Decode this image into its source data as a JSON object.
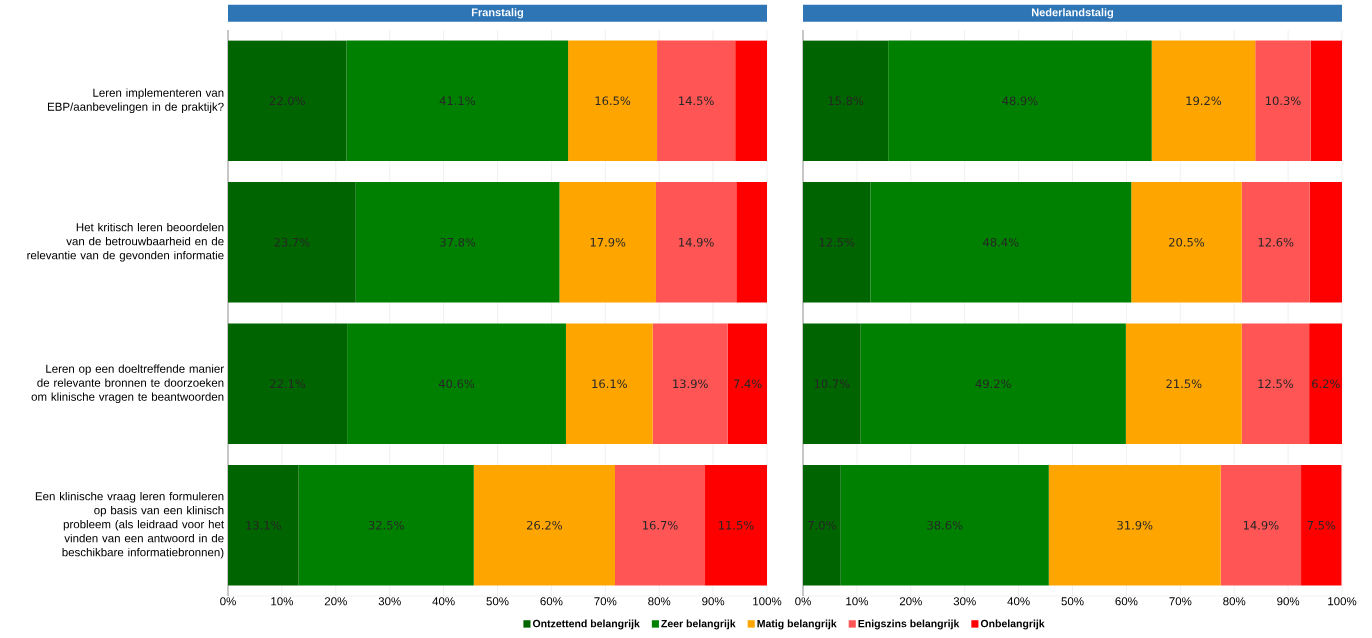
{
  "chart_data": [
    {
      "type": "bar",
      "orientation": "horizontal",
      "stacked": true,
      "title": "Franstalig",
      "categories": [
        "Leren implementeren van EBP/aanbevelingen in de praktijk?",
        "Het kritisch leren beoordelen van de betrouwbaarheid en de relevantie van de gevonden informatie",
        "Leren op een doeltreffende manier de relevante bronnen te doorzoeken om klinische vragen te beantwoorden",
        "Een klinische vraag leren formuleren op basis van een klinisch probleem (als leidraad voor het vinden van een antwoord in de beschikbare informatiebronnen)"
      ],
      "xlim": [
        0,
        100
      ],
      "xticks": [
        {
          "value": 0,
          "label": "0%"
        },
        {
          "value": 10,
          "label": "10%"
        },
        {
          "value": 20,
          "label": "20%"
        },
        {
          "value": 30,
          "label": "30%"
        },
        {
          "value": 40,
          "label": "40%"
        },
        {
          "value": 50,
          "label": "50%"
        },
        {
          "value": 60,
          "label": "60%"
        },
        {
          "value": 70,
          "label": "70%"
        },
        {
          "value": 80,
          "label": "80%"
        },
        {
          "value": 90,
          "label": "90%"
        },
        {
          "value": 100,
          "label": "100%"
        }
      ],
      "grid": "x",
      "legend": "bottom",
      "series": [
        {
          "name": "Ontzettend belangrijk",
          "color": "#006400",
          "values": [
            22.0,
            23.7,
            22.1,
            13.1
          ],
          "value_labels": [
            "22.0%",
            "23.7%",
            "22.1%",
            "13.1%"
          ]
        },
        {
          "name": "Zeer belangrijk",
          "color": "#008000",
          "values": [
            41.1,
            37.8,
            40.6,
            32.5
          ],
          "value_labels": [
            "41.1%",
            "37.8%",
            "40.6%",
            "32.5%"
          ]
        },
        {
          "name": "Matig belangrijk",
          "color": "#ffa500",
          "values": [
            16.5,
            17.9,
            16.1,
            26.2
          ],
          "value_labels": [
            "16.5%",
            "17.9%",
            "16.1%",
            "26.2%"
          ]
        },
        {
          "name": "Enigszins belangrijk",
          "color": "#ff5555",
          "values": [
            14.5,
            14.9,
            13.9,
            16.7
          ],
          "value_labels": [
            "14.5%",
            "14.9%",
            "13.9%",
            "16.7%"
          ]
        },
        {
          "name": "Onbelangrijk",
          "color": "#ff0000",
          "values": [
            5.9,
            5.7,
            7.4,
            11.5
          ],
          "value_labels": [
            null,
            null,
            "7.4%",
            "11.5%"
          ]
        }
      ]
    },
    {
      "type": "bar",
      "orientation": "horizontal",
      "stacked": true,
      "title": "Nederlandstalig",
      "categories": [
        null,
        null,
        null,
        null
      ],
      "xlim": [
        0,
        100
      ],
      "xticks": [
        {
          "value": 0,
          "label": "0%"
        },
        {
          "value": 10,
          "label": "10%"
        },
        {
          "value": 20,
          "label": "20%"
        },
        {
          "value": 30,
          "label": "30%"
        },
        {
          "value": 40,
          "label": "40%"
        },
        {
          "value": 50,
          "label": "50%"
        },
        {
          "value": 60,
          "label": "60%"
        },
        {
          "value": 70,
          "label": "70%"
        },
        {
          "value": 80,
          "label": "80%"
        },
        {
          "value": 90,
          "label": "90%"
        },
        {
          "value": 100,
          "label": "100%"
        }
      ],
      "grid": "x",
      "series": [
        {
          "color": "#006400",
          "values": [
            15.8,
            12.5,
            10.7,
            7.0
          ],
          "value_labels": [
            "15.8%",
            "12.5%",
            "10.7%",
            "7.0%"
          ]
        },
        {
          "color": "#008000",
          "values": [
            48.9,
            48.4,
            49.2,
            38.6
          ],
          "value_labels": [
            "48.9%",
            "48.4%",
            "49.2%",
            "38.6%"
          ]
        },
        {
          "color": "#ffa500",
          "values": [
            19.2,
            20.5,
            21.5,
            31.9
          ],
          "value_labels": [
            "19.2%",
            "20.5%",
            "21.5%",
            "31.9%"
          ]
        },
        {
          "color": "#ff5555",
          "values": [
            10.3,
            12.6,
            12.5,
            14.9
          ],
          "value_labels": [
            "10.3%",
            "12.6%",
            "12.5%",
            "14.9%"
          ]
        },
        {
          "color": "#ff0000",
          "values": [
            5.8,
            6.0,
            6.2,
            7.5
          ],
          "value_labels": [
            null,
            null,
            "6.2%",
            "7.5%"
          ]
        }
      ]
    }
  ]
}
